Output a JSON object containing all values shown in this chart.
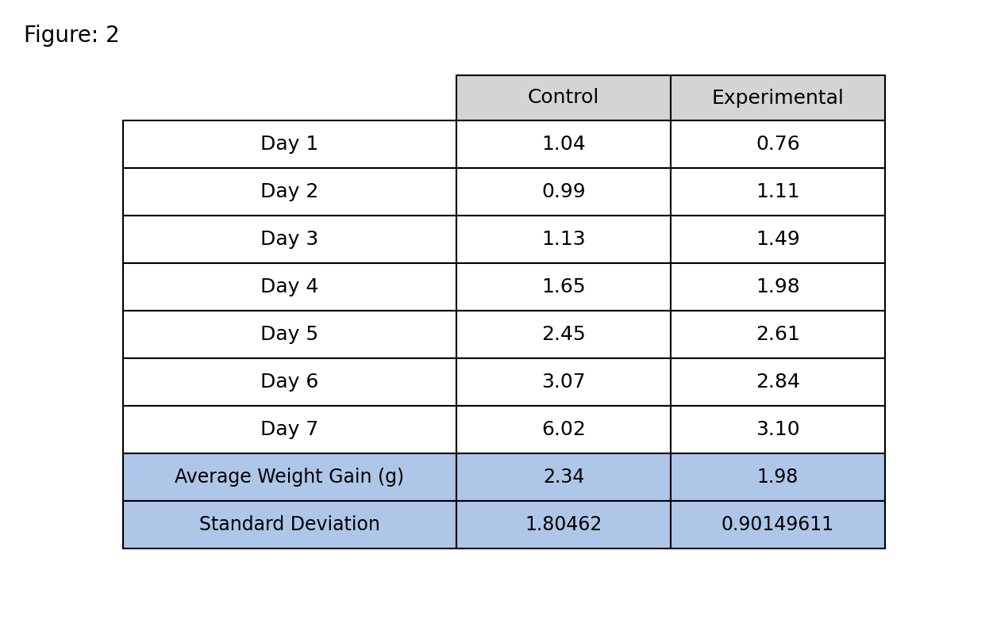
{
  "figure_label": "Figure: 2",
  "col_headers": [
    "Control",
    "Experimental"
  ],
  "row_labels": [
    "Day 1",
    "Day 2",
    "Day 3",
    "Day 4",
    "Day 5",
    "Day 6",
    "Day 7"
  ],
  "data_rows": [
    [
      "1.04",
      "0.76"
    ],
    [
      "0.99",
      "1.11"
    ],
    [
      "1.13",
      "1.49"
    ],
    [
      "1.65",
      "1.98"
    ],
    [
      "2.45",
      "2.61"
    ],
    [
      "3.07",
      "2.84"
    ],
    [
      "6.02",
      "3.10"
    ]
  ],
  "summary_rows": [
    [
      "Average Weight Gain (g)",
      "2.34",
      "1.98"
    ],
    [
      "Standard Deviation",
      "1.80462",
      "0.90149611"
    ]
  ],
  "header_bg": "#d4d4d4",
  "summary_bg": "#aec6e8",
  "data_bg": "#ffffff",
  "border_color": "#000000",
  "text_color": "#000000",
  "figure_label_fontsize": 20,
  "header_fontsize": 18,
  "cell_fontsize": 18,
  "summary_fontsize": 17,
  "font_family": "DejaVu Sans"
}
